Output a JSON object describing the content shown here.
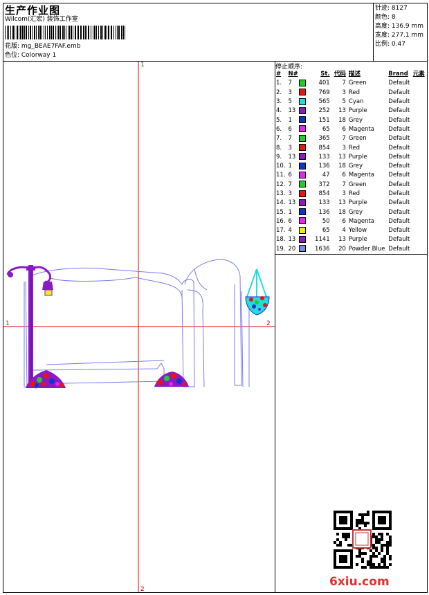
{
  "header": {
    "title": "生产作业图",
    "subtitle": "Wilcom(汇宏) 装饰工作室",
    "design_label": "花版: mg_BEAE7FAF.emb",
    "colorway_label": "色位: Colorway 1"
  },
  "stats": {
    "stitches": "针迹: 8127",
    "colors": "颜色: 8",
    "height": "高度: 136.9 mm",
    "width": "宽度: 277.1 mm",
    "scale": "比例: 0.47"
  },
  "sequence": {
    "heading": "停止顺序:",
    "columns": [
      "#",
      "N#",
      "St.",
      "代码",
      "描述",
      "Brand",
      "元素"
    ],
    "rows": [
      {
        "i": "1.",
        "n": "7",
        "color": "#22cc22",
        "st": "401",
        "code": "7",
        "desc": "Green",
        "brand": "Default"
      },
      {
        "i": "2.",
        "n": "3",
        "color": "#ee1111",
        "st": "769",
        "code": "3",
        "desc": "Red",
        "brand": "Default"
      },
      {
        "i": "3.",
        "n": "5",
        "color": "#22dddd",
        "st": "565",
        "code": "5",
        "desc": "Cyan",
        "brand": "Default"
      },
      {
        "i": "4.",
        "n": "13",
        "color": "#8a1bc4",
        "st": "252",
        "code": "13",
        "desc": "Purple",
        "brand": "Default"
      },
      {
        "i": "5.",
        "n": "1",
        "color": "#1133cc",
        "st": "151",
        "code": "18",
        "desc": "Grey",
        "brand": "Default"
      },
      {
        "i": "6.",
        "n": "6",
        "color": "#ee22ee",
        "st": "65",
        "code": "6",
        "desc": "Magenta",
        "brand": "Default"
      },
      {
        "i": "7.",
        "n": "7",
        "color": "#22cc22",
        "st": "365",
        "code": "7",
        "desc": "Green",
        "brand": "Default"
      },
      {
        "i": "8.",
        "n": "3",
        "color": "#ee1111",
        "st": "854",
        "code": "3",
        "desc": "Red",
        "brand": "Default"
      },
      {
        "i": "9.",
        "n": "13",
        "color": "#8a1bc4",
        "st": "133",
        "code": "13",
        "desc": "Purple",
        "brand": "Default"
      },
      {
        "i": "10.",
        "n": "1",
        "color": "#1133cc",
        "st": "136",
        "code": "18",
        "desc": "Grey",
        "brand": "Default"
      },
      {
        "i": "11.",
        "n": "6",
        "color": "#ee22ee",
        "st": "47",
        "code": "6",
        "desc": "Magenta",
        "brand": "Default"
      },
      {
        "i": "12.",
        "n": "7",
        "color": "#22cc22",
        "st": "372",
        "code": "7",
        "desc": "Green",
        "brand": "Default"
      },
      {
        "i": "13.",
        "n": "3",
        "color": "#ee1111",
        "st": "854",
        "code": "3",
        "desc": "Red",
        "brand": "Default"
      },
      {
        "i": "14.",
        "n": "13",
        "color": "#8a1bc4",
        "st": "133",
        "code": "13",
        "desc": "Purple",
        "brand": "Default"
      },
      {
        "i": "15.",
        "n": "1",
        "color": "#1133cc",
        "st": "136",
        "code": "18",
        "desc": "Grey",
        "brand": "Default"
      },
      {
        "i": "16.",
        "n": "6",
        "color": "#ee22ee",
        "st": "50",
        "code": "6",
        "desc": "Magenta",
        "brand": "Default"
      },
      {
        "i": "17.",
        "n": "4",
        "color": "#eeee11",
        "st": "65",
        "code": "4",
        "desc": "Yellow",
        "brand": "Default"
      },
      {
        "i": "18.",
        "n": "13",
        "color": "#8a1bc4",
        "st": "1141",
        "code": "13",
        "desc": "Purple",
        "brand": "Default"
      },
      {
        "i": "19.",
        "n": "20",
        "color": "#7a88ee",
        "st": "1636",
        "code": "20",
        "desc": "Powder Blue",
        "brand": "Default"
      }
    ]
  },
  "canvas": {
    "marker_top": "1",
    "marker_left": "1",
    "marker_right": "2",
    "marker_bottom": "2",
    "axis_color": "#e00000",
    "outline_color": "#7a7af0"
  },
  "footer": {
    "logo_text": "6xiu.com"
  }
}
